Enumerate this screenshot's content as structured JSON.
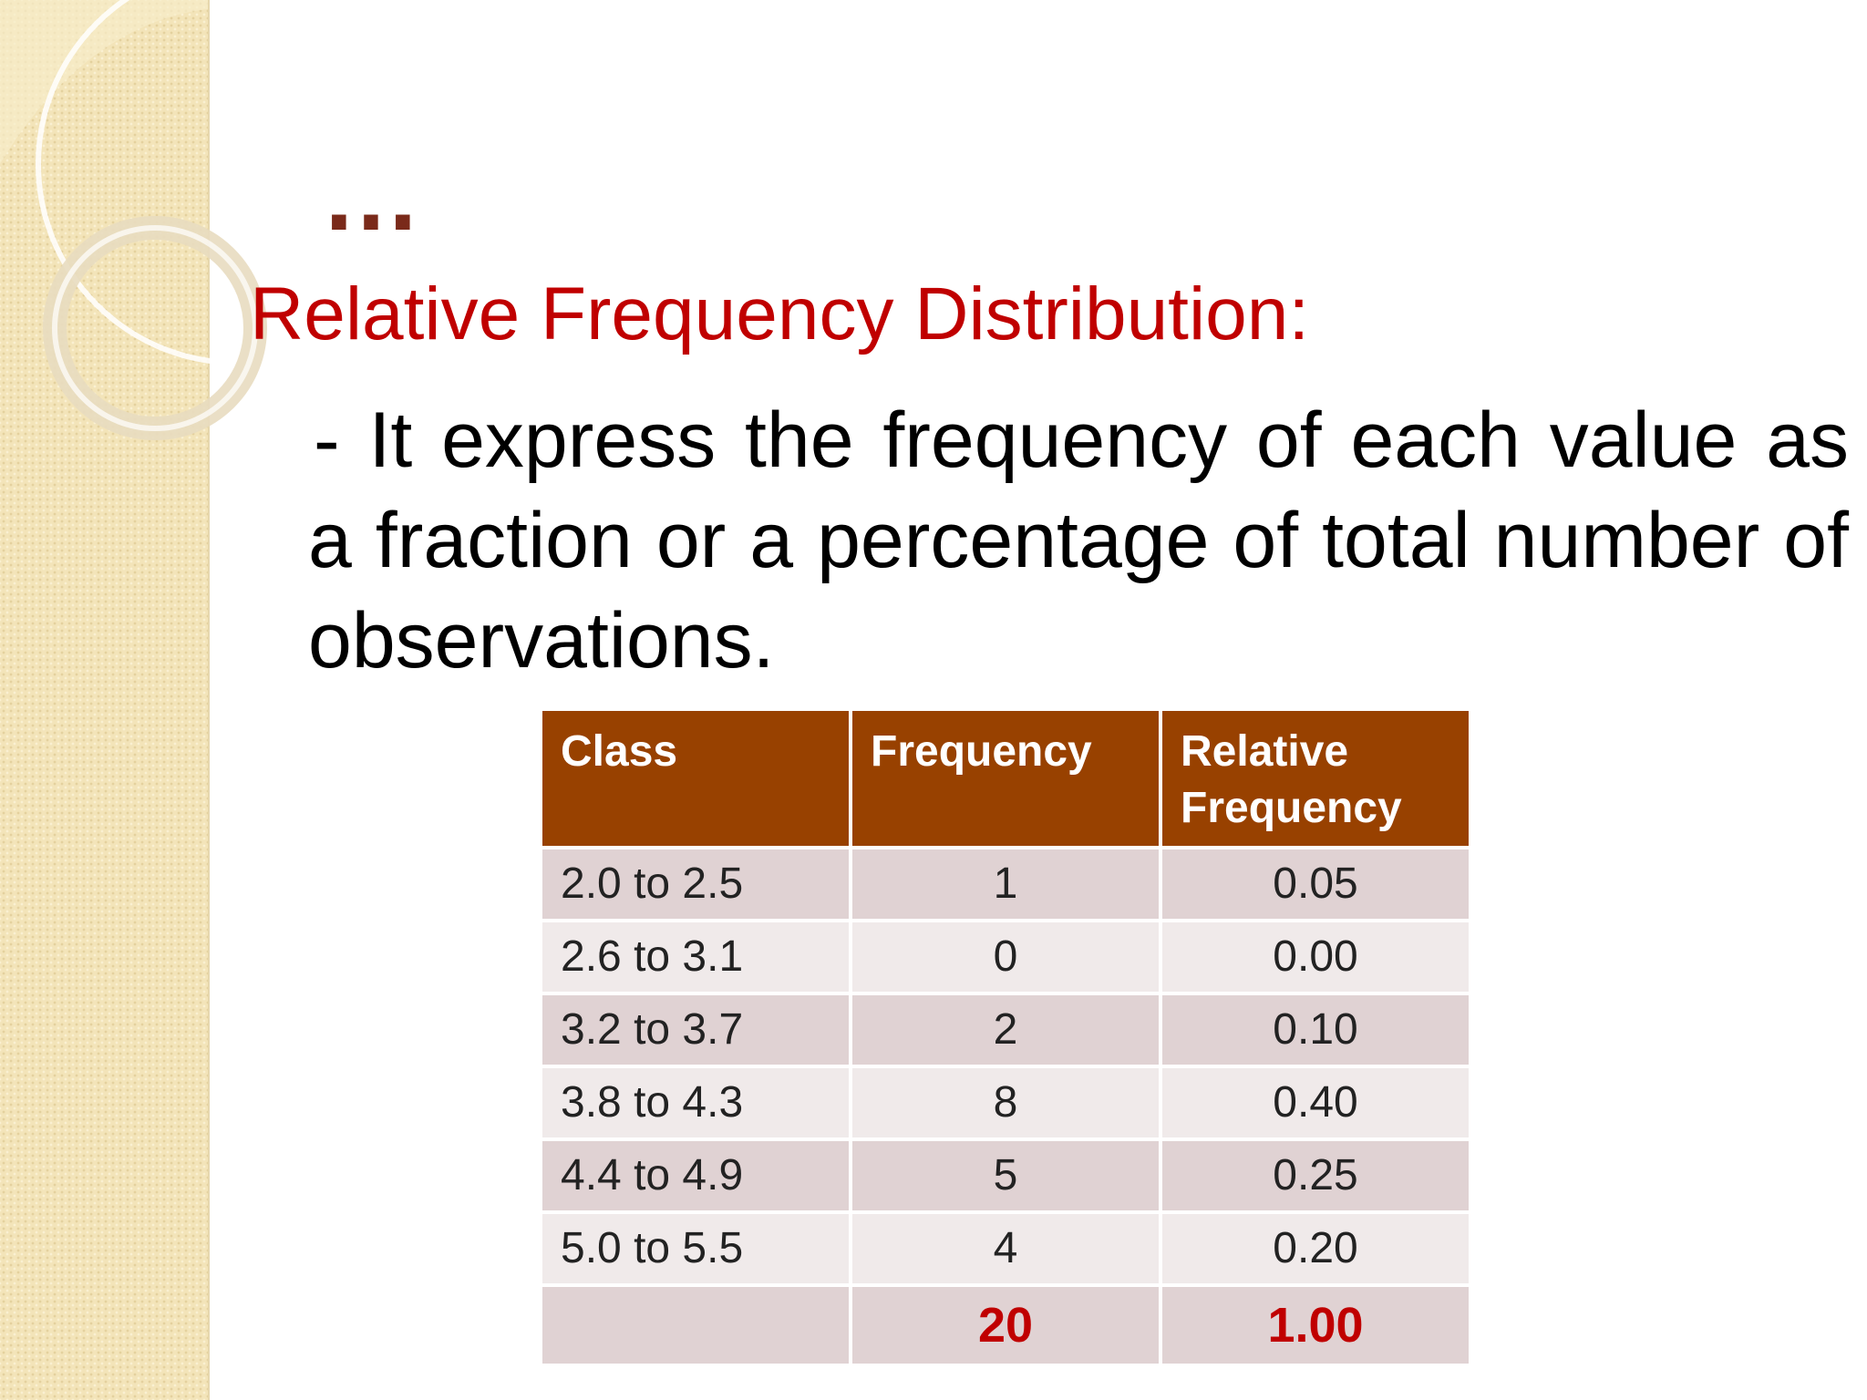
{
  "slide": {
    "ellipsis": "…",
    "heading": "Relative Frequency Distribution:",
    "body": "- It express the frequency of each value as a fraction or a percentage of total number of observations."
  },
  "table": {
    "headers": [
      "Class",
      "Frequency",
      "Relative Frequency"
    ],
    "rows": [
      [
        "2.0 to 2.5",
        "1",
        "0.05"
      ],
      [
        "2.6 to 3.1",
        "0",
        "0.00"
      ],
      [
        "3.2 to 3.7",
        "2",
        "0.10"
      ],
      [
        "3.8 to 4.3",
        "8",
        "0.40"
      ],
      [
        "4.4 to 4.9",
        "5",
        "0.25"
      ],
      [
        "5.0 to 5.5",
        "4",
        "0.20"
      ]
    ],
    "total": [
      "",
      "20",
      "1.00"
    ]
  },
  "colors": {
    "heading": "#c00000",
    "header_fill": "#984100",
    "row_odd": "#e0d2d3",
    "row_even": "#f0eaea",
    "side_band": "#f3e4b9"
  }
}
